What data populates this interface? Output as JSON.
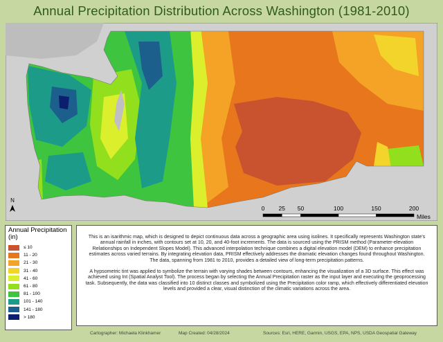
{
  "header": {
    "title": "Annual Precipitation Distribution Across Washington (1981-2010)"
  },
  "map": {
    "north_label": "N",
    "scale_bar": {
      "ticks": [
        0,
        25,
        50,
        100,
        150,
        200
      ],
      "unit": "Miles"
    }
  },
  "legend": {
    "title": "Annual Precipitation (in)",
    "items": [
      {
        "label": "≤ 10",
        "color": "#c9532e"
      },
      {
        "label": "11 - 20",
        "color": "#e8761c"
      },
      {
        "label": "21 - 30",
        "color": "#f4a326"
      },
      {
        "label": "31 - 40",
        "color": "#f3d42a"
      },
      {
        "label": "41 - 60",
        "color": "#dcef2c"
      },
      {
        "label": "61 - 80",
        "color": "#92df1e"
      },
      {
        "label": "81 - 100",
        "color": "#3ec43e"
      },
      {
        "label": "101 - 140",
        "color": "#1c9c88"
      },
      {
        "label": "141 - 180",
        "color": "#1c5f8d"
      },
      {
        "label": "> 180",
        "color": "#0c1f6e"
      }
    ]
  },
  "description": {
    "paragraphs": [
      "This is an isarithmic map, which is designed to depict continuous data across a geographic area using isolines. It specifically represents Washington state's annual rainfall in inches, with contours set at 10, 20, and 40-foot increments. The data is sourced using the PRISM method (Parameter-elevation Relationships on Independent Slopes Model). This advanced interpolation technique combines a digital elevation model (DEM) to enhance precipitation estimates across varied terrains. By integrating elevation data, PRISM effectively addresses the dramatic elevation changes found throughout Washington. The data, spanning from 1981 to 2010, provides a detailed view of long-term precipitation patterns.",
      "A hypsometric tint was applied to symbolize the terrain with varying shades between contours, enhancing the visualization of a 3D surface. This effect was achieved using Int (Spatial Analyst Tool). The process began by selecting the Annual Precipitation raster as the input layer and executing the geoprocessing task. Subsequently, the data was classified into 10 distinct classes and symbolized using the Precipitation color ramp, which effectively differentiated elevation levels and provided a clear, visual distinction of the climatic variations across the area."
    ]
  },
  "footer": {
    "cartographer": "Cartographer: Michaela Klinkhamer",
    "date": "Map Created: 04/28/2024",
    "sources": "Sources: Esri, HERE, Garmin, USGS, EPA, NPS, USDA Geospatial Gateway"
  }
}
